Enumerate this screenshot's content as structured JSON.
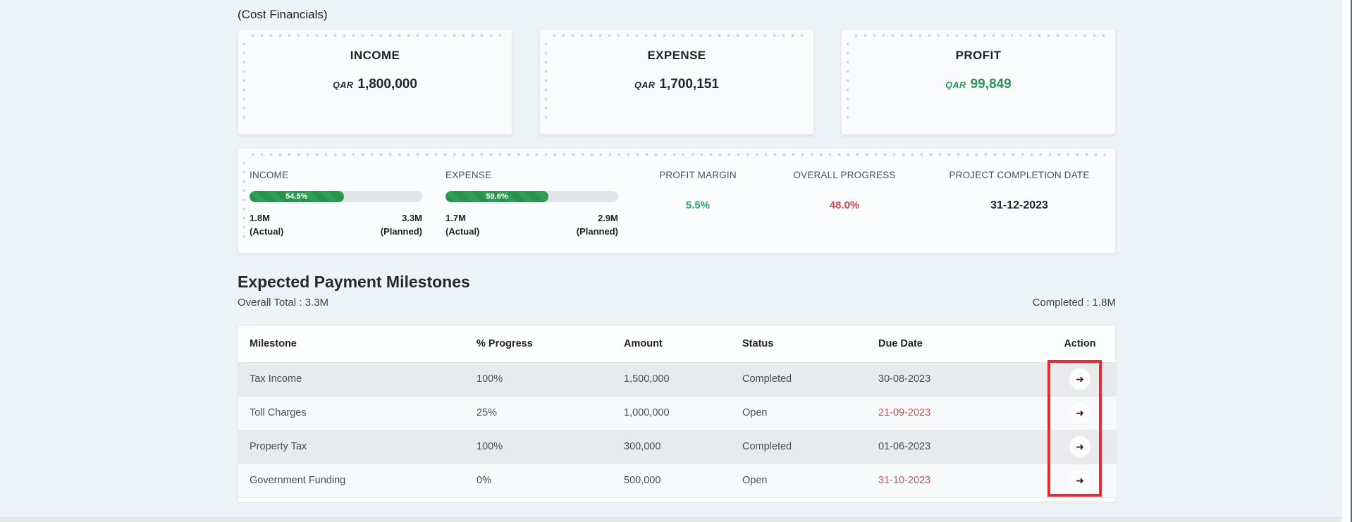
{
  "page": {
    "subtitle": "(Cost Financials)"
  },
  "cards": [
    {
      "title": "INCOME",
      "currency": "QAR",
      "amount": "1,800,000"
    },
    {
      "title": "EXPENSE",
      "currency": "QAR",
      "amount": "1,700,151"
    },
    {
      "title": "PROFIT",
      "currency": "QAR",
      "amount": "99,849"
    }
  ],
  "summary": {
    "income": {
      "label": "INCOME",
      "percent": "54.5%",
      "actual": "1.8M",
      "actual_caption": "(Actual)",
      "planned": "3.3M",
      "planned_caption": "(Planned)"
    },
    "expense": {
      "label": "EXPENSE",
      "percent": "59.6%",
      "actual": "1.7M",
      "actual_caption": "(Actual)",
      "planned": "2.9M",
      "planned_caption": "(Planned)"
    },
    "profit_margin": {
      "label": "PROFIT MARGIN",
      "value": "5.5%"
    },
    "overall_progress": {
      "label": "OVERALL PROGRESS",
      "value": "48.0%"
    },
    "completion_date": {
      "label": "PROJECT COMPLETION DATE",
      "value": "31-12-2023"
    }
  },
  "milestones": {
    "heading": "Expected Payment Milestones",
    "overall_total": "Overall Total : 3.3M",
    "completed": "Completed : 1.8M",
    "columns": [
      "Milestone",
      "% Progress",
      "Amount",
      "Status",
      "Due Date",
      "Action"
    ],
    "action_arrow": "➜",
    "rows": [
      {
        "milestone": "Tax Income",
        "progress": "100%",
        "amount": "1,500,000",
        "status": "Completed",
        "due_date": "30-08-2023",
        "due_overdue": false
      },
      {
        "milestone": "Toll Charges",
        "progress": "25%",
        "amount": "1,000,000",
        "status": "Open",
        "due_date": "21-09-2023",
        "due_overdue": true
      },
      {
        "milestone": "Property Tax",
        "progress": "100%",
        "amount": "300,000",
        "status": "Completed",
        "due_date": "01-06-2023",
        "due_overdue": false
      },
      {
        "milestone": "Government Funding",
        "progress": "0%",
        "amount": "500,000",
        "status": "Open",
        "due_date": "31-10-2023",
        "due_overdue": true
      }
    ]
  },
  "colors": {
    "green": "#2e9e54",
    "green-text": "#2c9355",
    "red": "#c8474e",
    "due-red": "#b25b62",
    "highlight": "#ea2830"
  }
}
